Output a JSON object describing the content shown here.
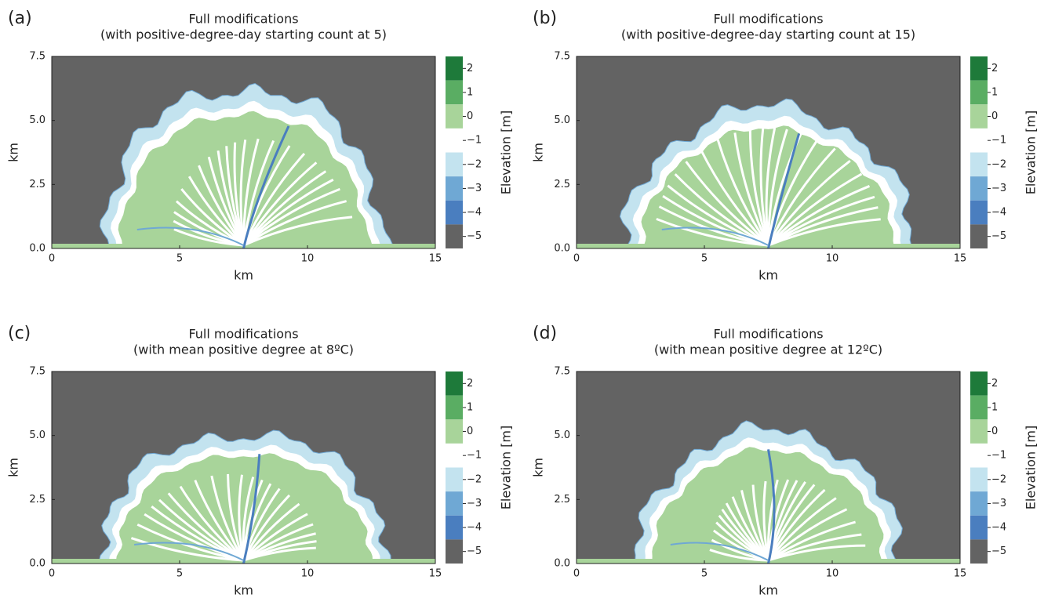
{
  "chart_data": [
    {
      "type": "contour",
      "panel": "(a)",
      "title": "Full modifications",
      "subtitle": "(with positive-degree-day starting count at 5)",
      "xlabel": "km",
      "ylabel": "km",
      "xlim": [
        0,
        15
      ],
      "ylim": [
        0,
        7.5
      ],
      "xticks": [
        0,
        5,
        10,
        15
      ],
      "yticks": [
        {
          "value": 0,
          "label": "0.0"
        },
        2.5,
        {
          "value": 5,
          "label": "5.0"
        },
        7.5
      ],
      "colorbar": {
        "label": "Elevation [m]",
        "lim": [
          -5.5,
          2.5
        ],
        "ticks": [
          2,
          1,
          0,
          {
            "value": -1,
            "label": "−1"
          },
          {
            "value": -2,
            "label": "−2"
          },
          {
            "value": -3,
            "label": "−3"
          },
          {
            "value": -4,
            "label": "−4"
          },
          {
            "value": -5,
            "label": "−5"
          }
        ],
        "colors": [
          "#1e7a3a",
          "#5aad63",
          "#a8d49a",
          "#ffffff",
          "#c3e3ef",
          "#6fa8d4",
          "#4a7ebf",
          "#636363"
        ]
      }
    },
    {
      "type": "contour",
      "panel": "(b)",
      "title": "Full modifications",
      "subtitle": "(with positive-degree-day starting count at 15)",
      "xlabel": "km",
      "ylabel": "km",
      "xlim": [
        0,
        15
      ],
      "ylim": [
        0,
        7.5
      ],
      "xticks": [
        0,
        5,
        10,
        15
      ],
      "yticks": [
        {
          "value": 0,
          "label": "0.0"
        },
        2.5,
        {
          "value": 5,
          "label": "5.0"
        },
        7.5
      ],
      "colorbar": {
        "label": "Elevation [m]",
        "lim": [
          -5.5,
          2.5
        ],
        "ticks": [
          2,
          1,
          0,
          {
            "value": -1,
            "label": "−1"
          },
          {
            "value": -2,
            "label": "−2"
          },
          {
            "value": -3,
            "label": "−3"
          },
          {
            "value": -4,
            "label": "−4"
          },
          {
            "value": -5,
            "label": "−5"
          }
        ],
        "colors": [
          "#1e7a3a",
          "#5aad63",
          "#a8d49a",
          "#ffffff",
          "#c3e3ef",
          "#6fa8d4",
          "#4a7ebf",
          "#636363"
        ]
      }
    },
    {
      "type": "contour",
      "panel": "(c)",
      "title": "Full modifications",
      "subtitle": "(with mean positive degree at 8ºC)",
      "xlabel": "km",
      "ylabel": "km",
      "xlim": [
        0,
        15
      ],
      "ylim": [
        0,
        7.5
      ],
      "xticks": [
        0,
        5,
        10,
        15
      ],
      "yticks": [
        {
          "value": 0,
          "label": "0.0"
        },
        2.5,
        {
          "value": 5,
          "label": "5.0"
        },
        7.5
      ],
      "colorbar": {
        "label": "Elevation [m]",
        "lim": [
          -5.5,
          2.5
        ],
        "ticks": [
          2,
          1,
          0,
          {
            "value": -1,
            "label": "−1"
          },
          {
            "value": -2,
            "label": "−2"
          },
          {
            "value": -3,
            "label": "−3"
          },
          {
            "value": -4,
            "label": "−4"
          },
          {
            "value": -5,
            "label": "−5"
          }
        ],
        "colors": [
          "#1e7a3a",
          "#5aad63",
          "#a8d49a",
          "#ffffff",
          "#c3e3ef",
          "#6fa8d4",
          "#4a7ebf",
          "#636363"
        ]
      }
    },
    {
      "type": "contour",
      "panel": "(d)",
      "title": "Full modifications",
      "subtitle": "(with mean positive degree at 12ºC)",
      "xlabel": "km",
      "ylabel": "km",
      "xlim": [
        0,
        15
      ],
      "ylim": [
        0,
        7.5
      ],
      "xticks": [
        0,
        5,
        10,
        15
      ],
      "yticks": [
        {
          "value": 0,
          "label": "0.0"
        },
        2.5,
        {
          "value": 5,
          "label": "5.0"
        },
        7.5
      ],
      "colorbar": {
        "label": "Elevation [m]",
        "lim": [
          -5.5,
          2.5
        ],
        "ticks": [
          2,
          1,
          0,
          {
            "value": -1,
            "label": "−1"
          },
          {
            "value": -2,
            "label": "−2"
          },
          {
            "value": -3,
            "label": "−3"
          },
          {
            "value": -4,
            "label": "−4"
          },
          {
            "value": -5,
            "label": "−5"
          }
        ],
        "colors": [
          "#1e7a3a",
          "#5aad63",
          "#a8d49a",
          "#ffffff",
          "#c3e3ef",
          "#6fa8d4",
          "#4a7ebf",
          "#636363"
        ]
      }
    }
  ]
}
